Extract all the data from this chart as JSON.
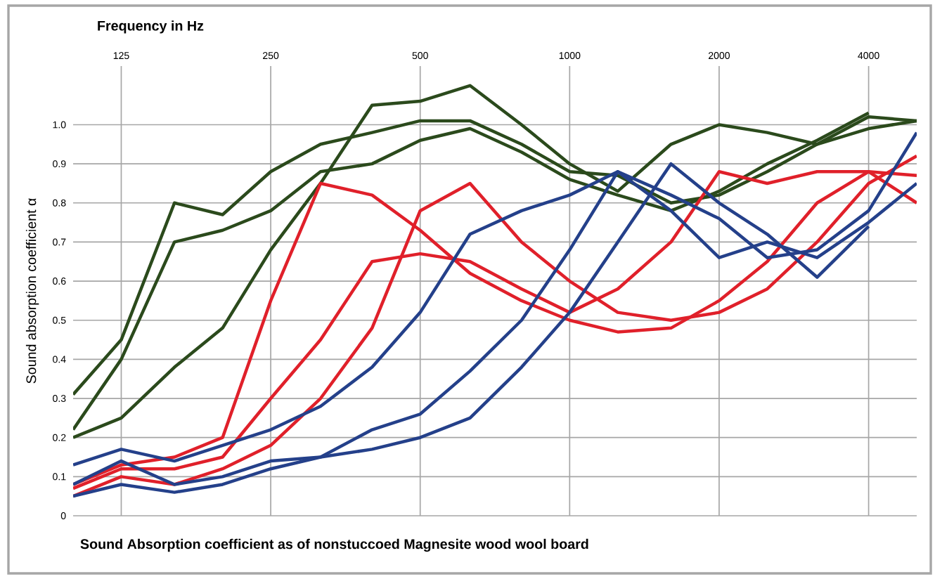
{
  "chart_data": {
    "type": "line",
    "xlabel": "Frequency in Hz",
    "ylabel": "Sound absorption coefficient α",
    "annotations": [
      "Sound Absorption coefficient as of nonstuccoed Magnesite wood wool board"
    ],
    "log": "x",
    "xlim": [
      100,
      5000
    ],
    "xticks": [
      125,
      250,
      500,
      1000,
      2000,
      4000
    ],
    "ylim": [
      0,
      1.15
    ],
    "yticks": [
      {
        "value": 0,
        "label": "0"
      },
      0.1,
      0.2,
      0.3,
      0.4,
      0.5,
      0.6,
      0.7,
      0.8,
      0.9,
      {
        "value": 1,
        "label": "1.0"
      }
    ],
    "grid": true,
    "marker": "none",
    "line_style": "solid",
    "x": [
      100,
      125,
      160,
      200,
      250,
      315,
      400,
      500,
      630,
      800,
      1000,
      1250,
      1600,
      2000,
      2500,
      3150,
      4000,
      5000
    ],
    "series": [
      {
        "color": "#2b4a1c",
        "values": [
          0.31,
          0.45,
          0.8,
          0.77,
          0.88,
          0.95,
          0.98,
          1.01,
          1.01,
          0.95,
          0.88,
          0.87,
          0.8,
          0.82,
          0.88,
          0.95,
          1.02,
          1.01
        ]
      },
      {
        "color": "#2b4a1c",
        "values": [
          0.22,
          0.4,
          0.7,
          0.73,
          0.78,
          0.88,
          0.9,
          0.96,
          0.99,
          0.93,
          0.86,
          0.82,
          0.78,
          0.83,
          0.9,
          0.96,
          1.03,
          null
        ]
      },
      {
        "color": "#2b4a1c",
        "values": [
          0.2,
          0.25,
          0.38,
          0.48,
          0.68,
          0.85,
          1.05,
          1.06,
          1.1,
          1.0,
          0.9,
          0.83,
          0.95,
          1.0,
          0.98,
          0.95,
          0.99,
          1.01
        ]
      },
      {
        "color": "#e0202a",
        "values": [
          0.08,
          0.13,
          0.15,
          0.2,
          0.55,
          0.85,
          0.82,
          0.73,
          0.62,
          0.55,
          0.5,
          0.47,
          0.48,
          0.55,
          0.65,
          0.8,
          0.88,
          0.87
        ]
      },
      {
        "color": "#e0202a",
        "values": [
          0.07,
          0.12,
          0.12,
          0.15,
          0.3,
          0.45,
          0.65,
          0.67,
          0.65,
          0.58,
          0.52,
          0.58,
          0.7,
          0.88,
          0.85,
          0.88,
          0.88,
          0.8
        ]
      },
      {
        "color": "#e0202a",
        "values": [
          0.05,
          0.1,
          0.08,
          0.12,
          0.18,
          0.3,
          0.48,
          0.78,
          0.85,
          0.7,
          0.6,
          0.52,
          0.5,
          0.52,
          0.58,
          0.7,
          0.85,
          0.92
        ]
      },
      {
        "color": "#24408a",
        "values": [
          0.13,
          0.17,
          0.14,
          0.18,
          0.22,
          0.28,
          0.38,
          0.52,
          0.72,
          0.78,
          0.82,
          0.88,
          0.78,
          0.66,
          0.7,
          0.66,
          0.75,
          0.85
        ]
      },
      {
        "color": "#24408a",
        "values": [
          0.08,
          0.14,
          0.08,
          0.1,
          0.14,
          0.15,
          0.22,
          0.26,
          0.37,
          0.5,
          0.68,
          0.88,
          0.82,
          0.76,
          0.66,
          0.68,
          0.78,
          0.98
        ]
      },
      {
        "color": "#24408a",
        "values": [
          0.05,
          0.08,
          0.06,
          0.08,
          0.12,
          0.15,
          0.17,
          0.2,
          0.25,
          0.38,
          0.52,
          0.7,
          0.9,
          0.8,
          0.72,
          0.61,
          0.74,
          null
        ]
      }
    ]
  }
}
